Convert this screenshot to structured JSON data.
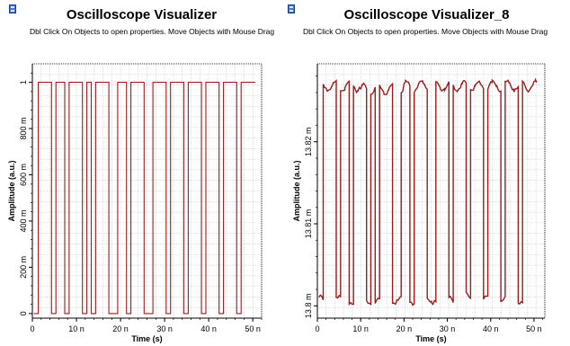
{
  "colors": {
    "trace": "#9b1c1c",
    "grid": "#c9c9c9",
    "frame": "#000000",
    "background": "#ffffff"
  },
  "windows": [
    {
      "title": "Oscilloscope Visualizer",
      "hint": "Dbl Click On Objects to open properties.  Move Objects with Mouse Drag",
      "icon": "visualizer-window-icon",
      "chart_data": {
        "type": "line",
        "xlabel": "Time (s)",
        "ylabel": "Amplitude (a.u.)",
        "xlim": [
          0,
          52
        ],
        "ylim": [
          -0.02,
          1.08
        ],
        "x_tick_labels": [
          "0",
          "10 n",
          "20 n",
          "30 n",
          "40 n",
          "50 n"
        ],
        "x_ticks": [
          0,
          10,
          20,
          30,
          40,
          50
        ],
        "y_tick_labels": [
          "0",
          "200 m",
          "400 m",
          "600 m",
          "800 m",
          "1"
        ],
        "y_ticks": [
          0,
          0.2,
          0.4,
          0.6,
          0.8,
          1.0
        ],
        "grid": true,
        "bit_period_ns": 1,
        "high_level": 1.0,
        "low_level": 0.0,
        "bits": "011101101110101110011011100111011101110111011101111011100"
      }
    },
    {
      "title": "Oscilloscope Visualizer_8",
      "hint": "Dbl Click On Objects to open properties.  Move Objects with Mouse Drag",
      "icon": "visualizer-window-icon",
      "chart_data": {
        "type": "line",
        "xlabel": "Time (s)",
        "ylabel": "Amplitude (a.u.)",
        "xlim": [
          0,
          52.5
        ],
        "ylim": [
          13.7985,
          13.8295
        ],
        "x_tick_labels": [
          "0",
          "10 n",
          "20 n",
          "30 n",
          "40 n",
          "50 n"
        ],
        "x_ticks": [
          0,
          10,
          20,
          30,
          40,
          50
        ],
        "y_tick_labels": [
          "13.8 m",
          "13.81 m",
          "13.82 m"
        ],
        "y_ticks": [
          13.8,
          13.81,
          13.82
        ],
        "grid": true,
        "bit_period_ns": 1,
        "high_level": 13.8268,
        "low_level": 13.8007,
        "bits": "011101101110101110011011100111011101110111011101111011100"
      }
    }
  ]
}
